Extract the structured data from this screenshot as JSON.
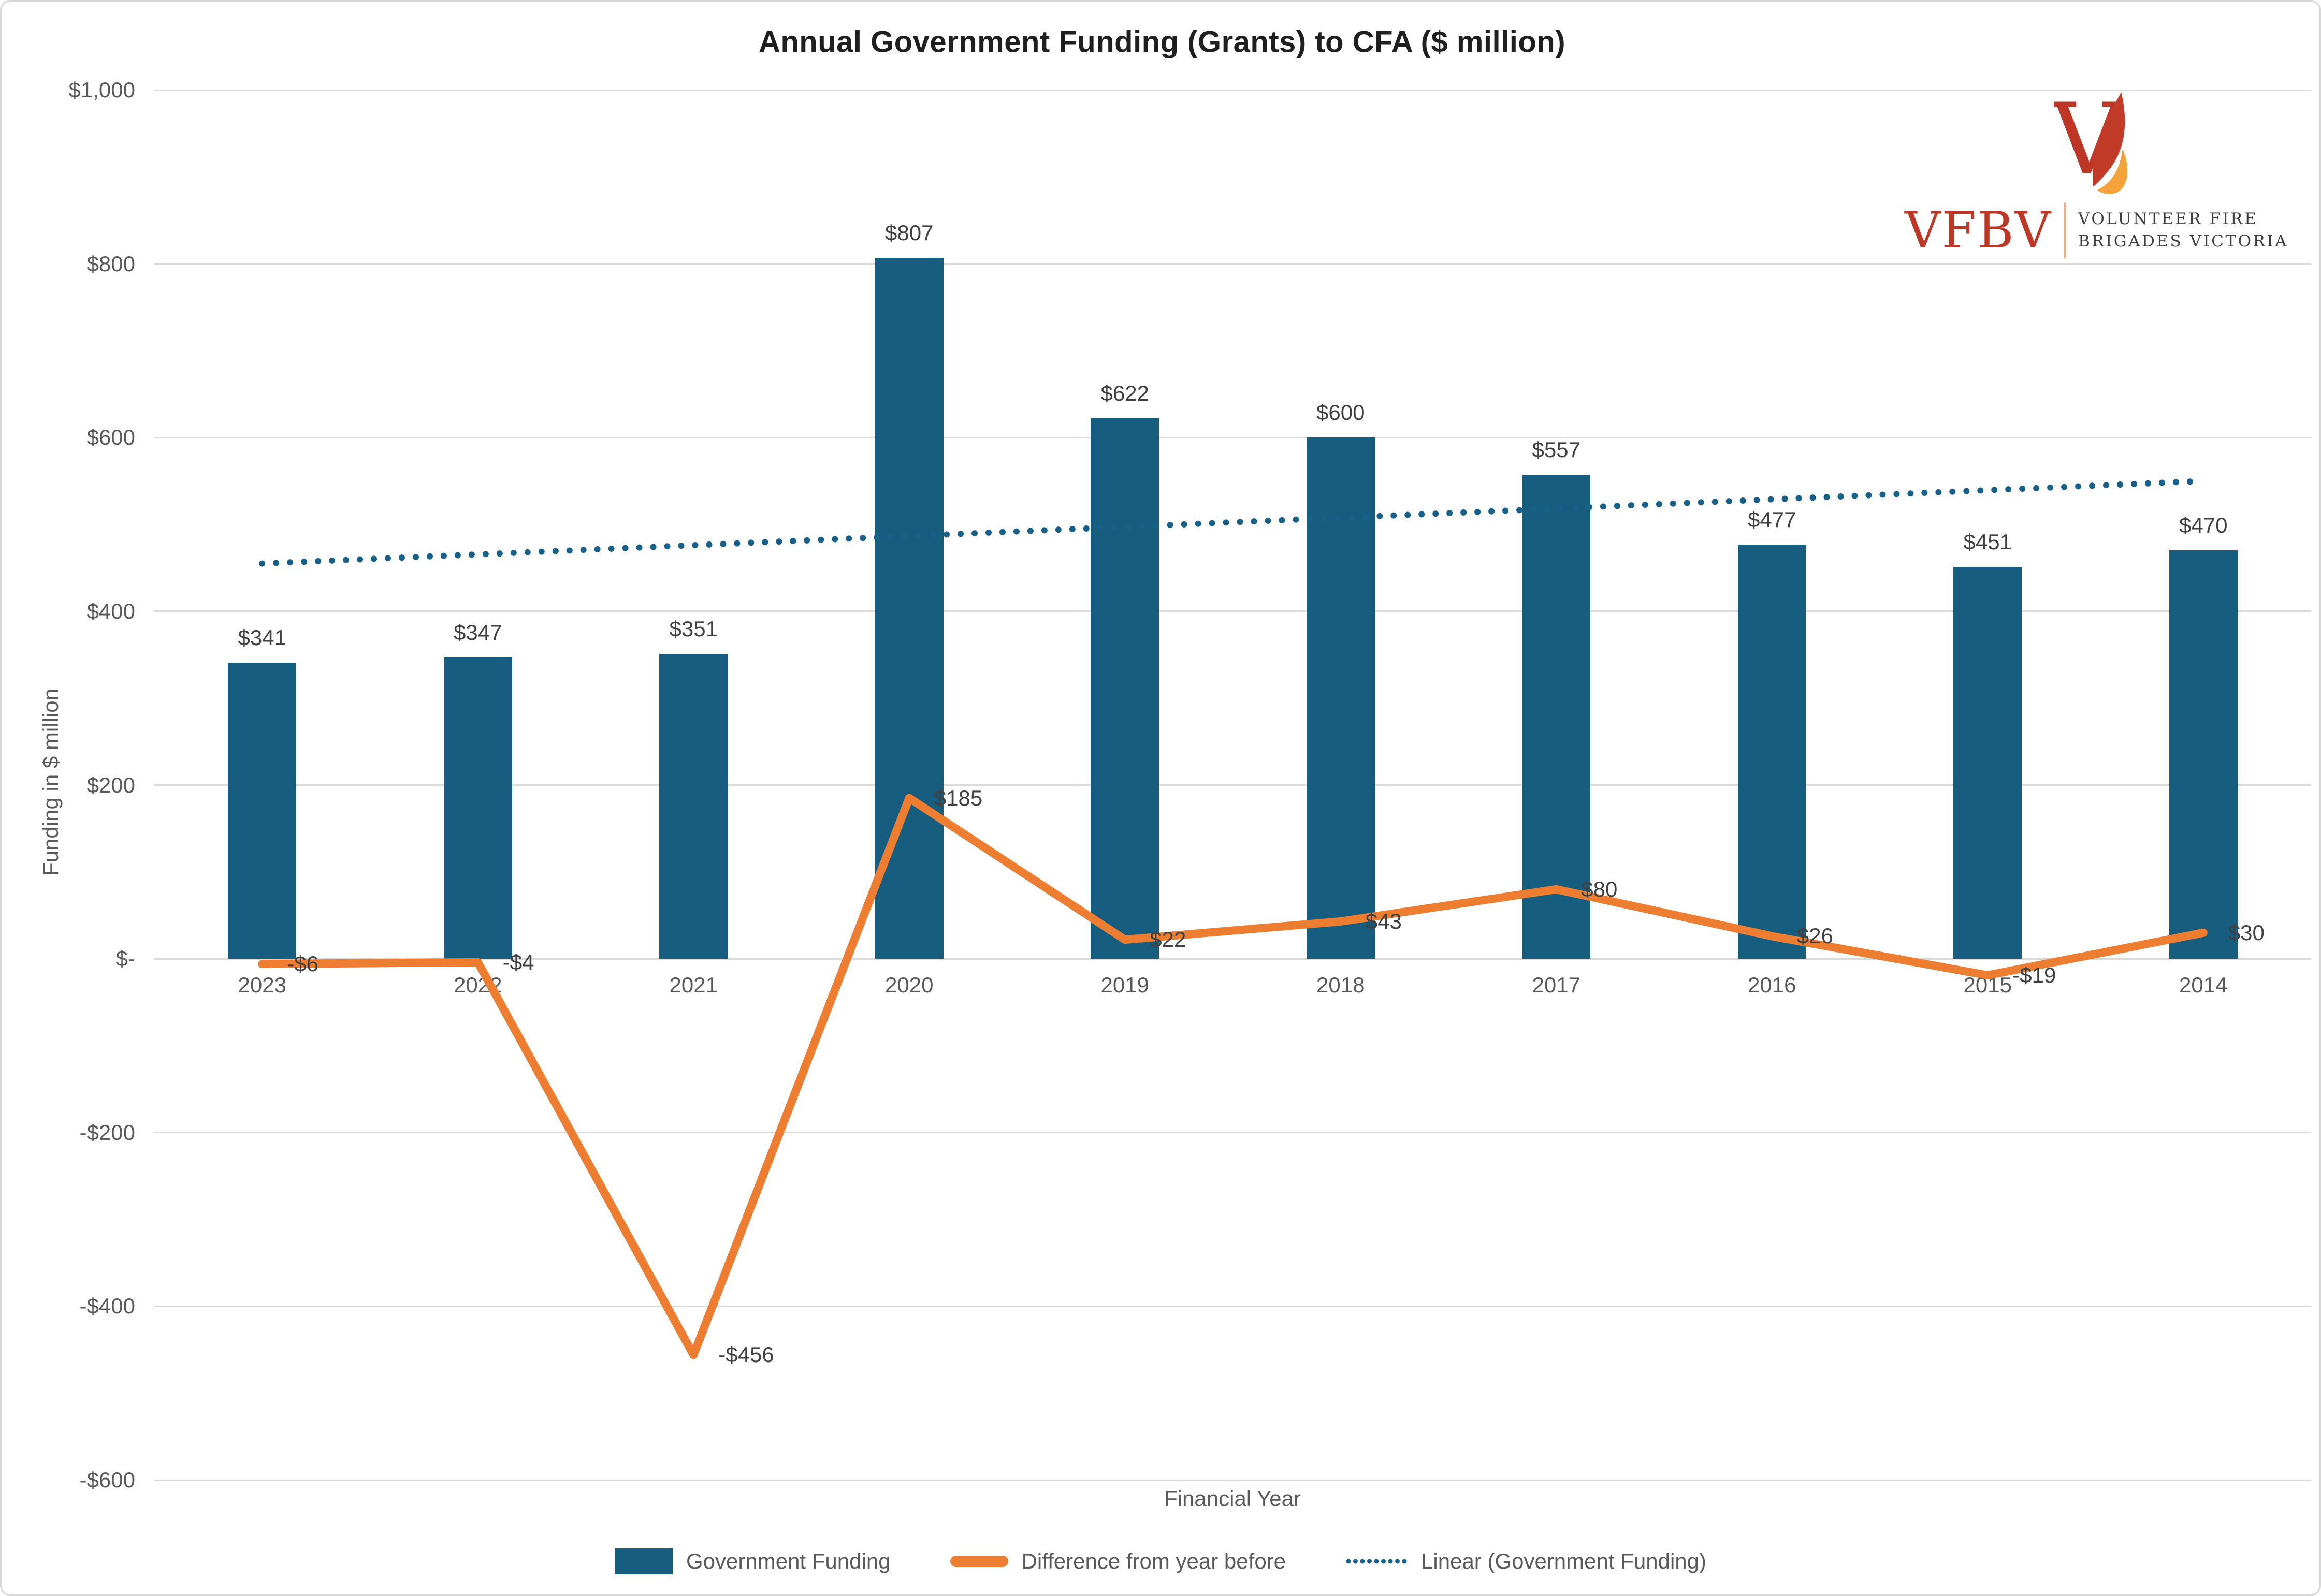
{
  "logo": {
    "acronym": "VFBV",
    "tagline_line1": "VOLUNTEER FIRE",
    "tagline_line2": "BRIGADES VICTORIA"
  },
  "colors": {
    "bar": "#175D80",
    "difference_line": "#ED7D31",
    "trendline": "#176089",
    "gridline": "#D9D9D9",
    "axis_text": "#595959",
    "data_label_text": "#404040",
    "title_text": "#1F1F1F",
    "logo_red": "#BE3726",
    "logo_flame_red": "#C23A28",
    "logo_flame_orange": "#F6A23B"
  },
  "chart_data": {
    "type": "bar",
    "combo": true,
    "title": "Annual Government Funding (Grants) to CFA ($ million)",
    "xlabel": "Financial Year",
    "ylabel": "Funding in $ million",
    "categories": [
      "2023",
      "2022",
      "2021",
      "2020",
      "2019",
      "2018",
      "2017",
      "2016",
      "2015",
      "2014"
    ],
    "series": [
      {
        "name": "Government Funding",
        "type": "bar",
        "color": "#175D80",
        "values": [
          341,
          347,
          351,
          807,
          622,
          600,
          557,
          477,
          451,
          470
        ],
        "labels": [
          "$341",
          "$347",
          "$351",
          "$807",
          "$622",
          "$600",
          "$557",
          "$477",
          "$451",
          "$470"
        ]
      },
      {
        "name": "Difference from year before",
        "type": "line",
        "color": "#ED7D31",
        "values": [
          -6,
          -4,
          -456,
          185,
          22,
          43,
          80,
          26,
          -19,
          30
        ],
        "labels": [
          "-$6",
          "-$4",
          "-$456",
          "$185",
          "$22",
          "$43",
          "$80",
          "$26",
          "-$19",
          "$30"
        ]
      },
      {
        "name": "Linear (Government Funding)",
        "type": "trendline",
        "style": "dotted",
        "color": "#176089",
        "endpoint_values": [
          455,
          550
        ]
      }
    ],
    "ylim": [
      -600,
      1000
    ],
    "ytick_step": 200,
    "ytick_labels": [
      "$1,000",
      "$800",
      "$600",
      "$400",
      "$200",
      "$-",
      "-$200",
      "-$400",
      "-$600"
    ],
    "grid": true,
    "legend_position": "bottom"
  }
}
